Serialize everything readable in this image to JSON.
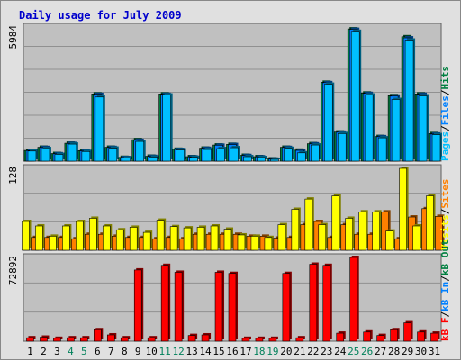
{
  "chart_data": {
    "type": "bar",
    "title": "Daily usage for July 2009",
    "days": [
      "1",
      "2",
      "3",
      "4",
      "5",
      "6",
      "7",
      "8",
      "9",
      "10",
      "11",
      "12",
      "13",
      "14",
      "15",
      "16",
      "17",
      "18",
      "19",
      "20",
      "21",
      "22",
      "23",
      "24",
      "25",
      "26",
      "27",
      "28",
      "29",
      "30",
      "31"
    ],
    "weekend_days": [
      4,
      5,
      11,
      12,
      18,
      19,
      25,
      26
    ],
    "panels": [
      {
        "name": "hits",
        "ymax_label": "5984",
        "ymax": 5984,
        "side_label": [
          "Pages",
          "/",
          "Files",
          "/",
          "Hits"
        ],
        "series": [
          {
            "name": "Hits",
            "color": "#008040",
            "values": [
              480,
              620,
              340,
              800,
              470,
              3000,
              620,
              170,
              960,
              220,
              3000,
              530,
              200,
              580,
              720,
              750,
              260,
              200,
              100,
              620,
              490,
              780,
              3520,
              1300,
              5900,
              3040,
              1100,
              2920,
              5550,
              3000,
              1230
            ]
          },
          {
            "name": "Files",
            "color": "#0080ff",
            "values": [
              470,
              610,
              330,
              790,
              460,
              2980,
              610,
              160,
              930,
              210,
              2980,
              520,
              190,
              570,
              710,
              740,
              250,
              190,
              90,
              610,
              480,
              770,
              3500,
              1290,
              5880,
              3020,
              1090,
              2900,
              5500,
              2980,
              1210
            ]
          },
          {
            "name": "Pages",
            "color": "#00c0ff",
            "values": [
              450,
              560,
              300,
              760,
              430,
              2860,
              580,
              140,
              880,
              180,
              2950,
              500,
              170,
              520,
              560,
              600,
              200,
              160,
              80,
              570,
              370,
              720,
              3430,
              1230,
              5790,
              2950,
              1040,
              2750,
              5400,
              2910,
              1180
            ]
          }
        ]
      },
      {
        "name": "visits",
        "ymax_label": "128",
        "ymax": 128,
        "side_label": [
          "Visits",
          "/",
          "Sites"
        ],
        "series": [
          {
            "name": "Visits",
            "color": "#ffff00",
            "values": [
              45,
              38,
              22,
              38,
              45,
              50,
              38,
              32,
              36,
              28,
              47,
              37,
              35,
              36,
              38,
              33,
              24,
              22,
              20,
              40,
              64,
              80,
              40,
              85,
              50,
              60,
              60,
              30,
              130,
              38,
              85
            ]
          },
          {
            "name": "Sites",
            "color": "#ff8000",
            "values": [
              20,
              20,
              20,
              18,
              25,
              25,
              22,
              20,
              20,
              18,
              20,
              18,
              25,
              25,
              25,
              25,
              22,
              22,
              19,
              20,
              40,
              45,
              20,
              40,
              25,
              25,
              60,
              18,
              52,
              65,
              53
            ]
          }
        ]
      },
      {
        "name": "kbytes",
        "ymax_label": "72892",
        "ymax": 72892,
        "side_label": [
          "kB F",
          "/",
          "kB In",
          "/",
          "kB Out"
        ],
        "series": [
          {
            "name": "kB F",
            "color": "#ff0000",
            "values": [
              3000,
              3500,
              2500,
              3000,
              3000,
              10000,
              5500,
              3000,
              62000,
              3000,
              66000,
              60000,
              5000,
              5500,
              60000,
              59000,
              2500,
              2500,
              2500,
              59000,
              3000,
              67000,
              66000,
              7000,
              73000,
              8000,
              5000,
              10000,
              16000,
              8000,
              7000
            ]
          }
        ]
      }
    ]
  }
}
